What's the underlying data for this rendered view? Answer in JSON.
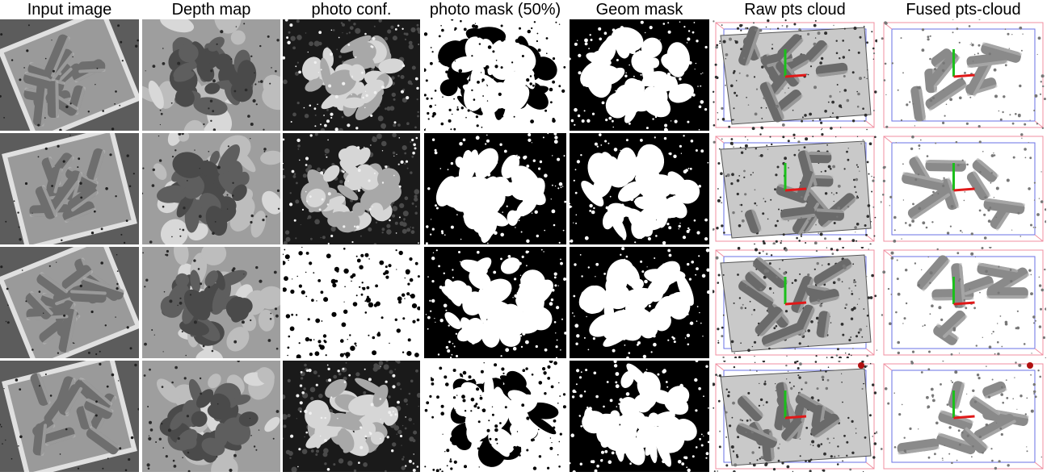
{
  "figure": {
    "headers": [
      "Input image",
      "Depth map",
      "photo conf.",
      "photo mask (50%)",
      "Geom mask",
      "Raw pts cloud",
      "Fused pts-cloud"
    ],
    "rows": 4,
    "columns": [
      {
        "kind": "input",
        "description_icon": "photo-thumbnail"
      },
      {
        "kind": "depth",
        "description_icon": "depth-map-thumbnail"
      },
      {
        "kind": "conf",
        "description_icon": "confidence-map-thumbnail"
      },
      {
        "kind": "mask",
        "description_icon": "binary-mask-thumbnail"
      },
      {
        "kind": "mask",
        "description_icon": "binary-mask-thumbnail"
      },
      {
        "kind": "cloud",
        "description_icon": "point-cloud-thumbnail"
      },
      {
        "kind": "fused",
        "description_icon": "point-cloud-thumbnail"
      }
    ],
    "colors": {
      "background": "#ffffff",
      "axis_red": "#e01919",
      "axis_green": "#1bbf1b",
      "box_blue": "#6a72e6",
      "box_pink": "#f08fa0"
    }
  }
}
